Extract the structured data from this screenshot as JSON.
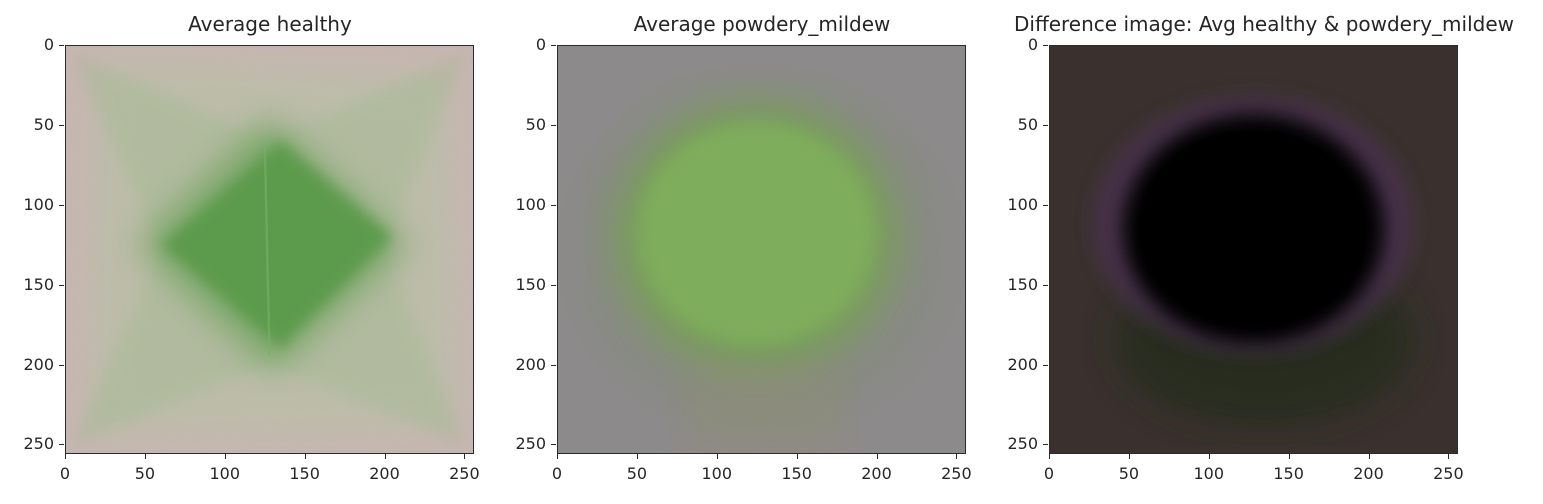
{
  "panels": [
    {
      "title": "Average healthy",
      "background": "#c5b4b0",
      "blob": "#5a9a4a",
      "blob_shape": "diamond"
    },
    {
      "title": "Average powdery_mildew",
      "background": "#8d8a8b",
      "blob": "#7fab58",
      "blob_shape": "ellipse"
    },
    {
      "title": "Difference image: Avg healthy & powdery_mildew",
      "background": "#3b3230",
      "blob": "#000000",
      "blob_shape": "dark-ellipse"
    }
  ],
  "axes": {
    "y_ticks": [
      "0",
      "50",
      "100",
      "150",
      "200",
      "250"
    ],
    "x_ticks": [
      "0",
      "50",
      "100",
      "150",
      "200",
      "250"
    ],
    "range": [
      0,
      256
    ]
  }
}
